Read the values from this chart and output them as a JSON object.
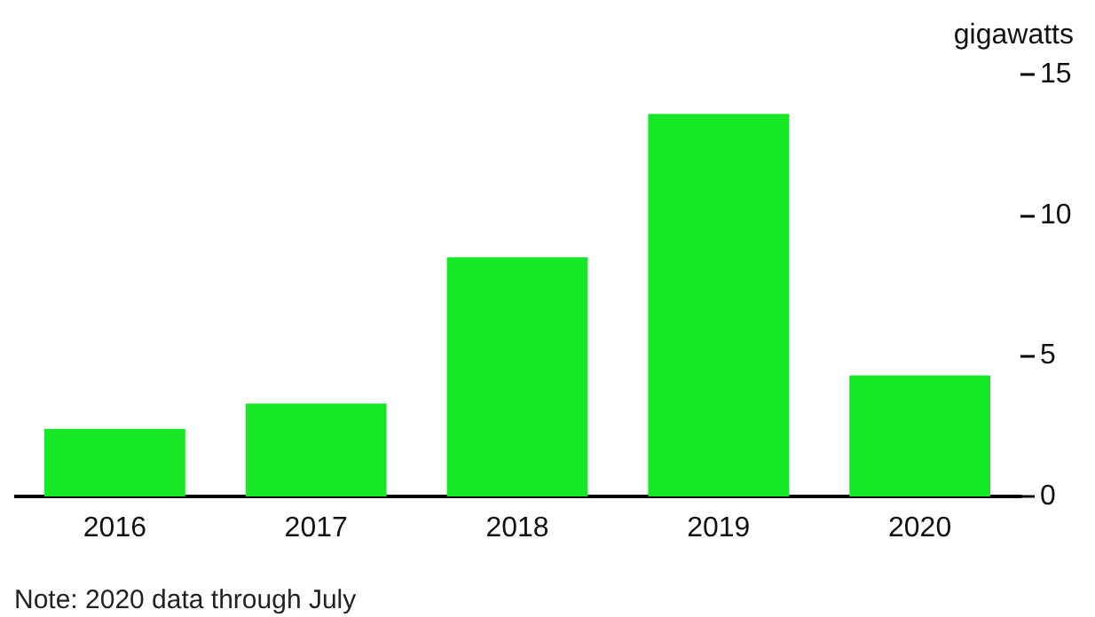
{
  "chart_data": {
    "type": "bar",
    "categories": [
      "2016",
      "2017",
      "2018",
      "2019",
      "2020"
    ],
    "values": [
      2.4,
      3.3,
      8.5,
      13.6,
      4.3
    ],
    "color": "#16e826",
    "ylim": [
      0,
      15
    ],
    "yticks": [
      0,
      5,
      10,
      15
    ],
    "ylabel": "gigawatts",
    "grid": false,
    "annotations": [
      "Note: 2020 data through July"
    ]
  }
}
